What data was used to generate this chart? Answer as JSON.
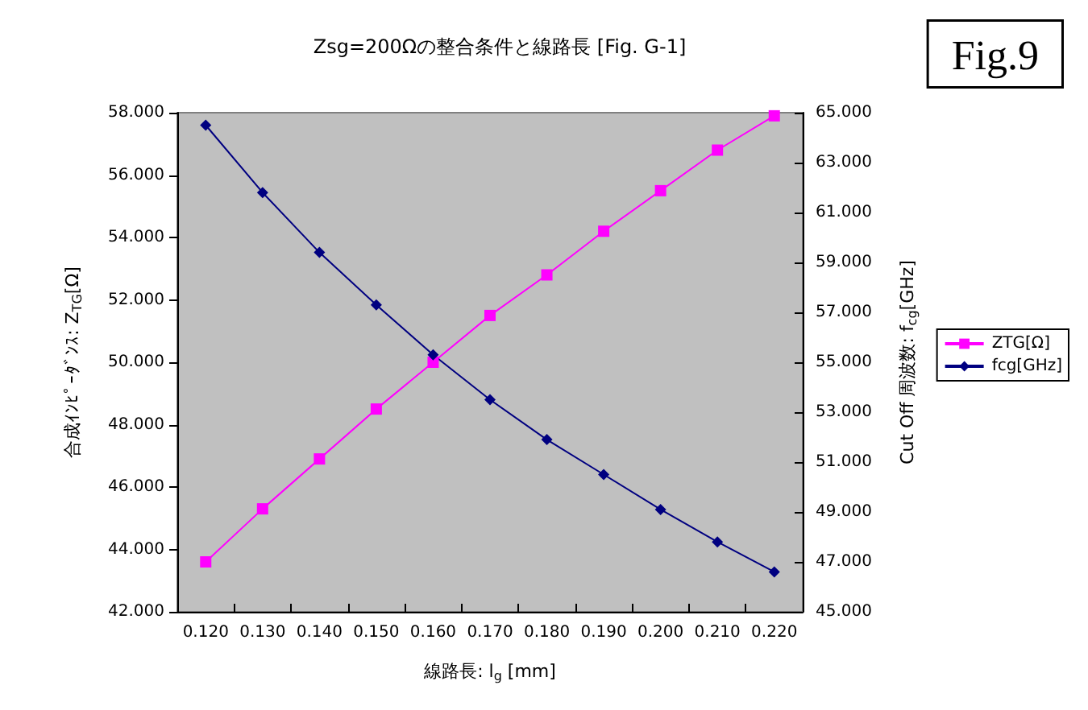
{
  "chart_data": {
    "type": "line",
    "title": "Zsg=200Ωの整合条件と線路長 [Fig. G-1]",
    "annotations": [
      "Fig.9"
    ],
    "xlabel": "線路長: l$_{g}$ [mm]",
    "ylabel": "合成ｲﾝﾋﾟｰﾀﾞﾝｽ: Z$_{TG}$[Ω]",
    "y2label": "Cut Off 周波数: f$_{cg}$[GHz]",
    "categories": [
      "0.120",
      "0.130",
      "0.140",
      "0.150",
      "0.160",
      "0.170",
      "0.180",
      "0.190",
      "0.200",
      "0.210",
      "0.220"
    ],
    "series": [
      {
        "name": "ZTG[Ω]",
        "color": "#ff00ff",
        "marker": "square",
        "values": [
          43.6,
          45.3,
          46.9,
          48.5,
          50.0,
          51.5,
          52.8,
          54.2,
          55.5,
          56.8,
          57.9
        ]
      },
      {
        "name": "fcg[GHz]",
        "color": "#000080",
        "marker": "diamond",
        "axis": "y2",
        "values": [
          64.5,
          61.8,
          59.4,
          57.3,
          55.3,
          53.5,
          51.9,
          50.5,
          49.1,
          47.8,
          46.6
        ]
      }
    ],
    "ylim": [
      42,
      58
    ],
    "yticks": [
      {
        "value": 42,
        "label": "42.000"
      },
      {
        "value": 44,
        "label": "44.000"
      },
      {
        "value": 46,
        "label": "46.000"
      },
      {
        "value": 48,
        "label": "48.000"
      },
      {
        "value": 50,
        "label": "50.000"
      },
      {
        "value": 52,
        "label": "52.000"
      },
      {
        "value": 54,
        "label": "54.000"
      },
      {
        "value": 56,
        "label": "56.000"
      },
      {
        "value": 58,
        "label": "58.000"
      }
    ],
    "y2lim": [
      45,
      65
    ],
    "y2ticks": [
      {
        "value": 45,
        "label": "45.000"
      },
      {
        "value": 47,
        "label": "47.000"
      },
      {
        "value": 49,
        "label": "49.000"
      },
      {
        "value": 51,
        "label": "51.000"
      },
      {
        "value": 53,
        "label": "53.000"
      },
      {
        "value": 55,
        "label": "55.000"
      },
      {
        "value": 57,
        "label": "57.000"
      },
      {
        "value": 59,
        "label": "59.000"
      },
      {
        "value": 61,
        "label": "61.000"
      },
      {
        "value": 63,
        "label": "63.000"
      },
      {
        "value": 65,
        "label": "65.000"
      }
    ],
    "grid": false,
    "legend": "right",
    "line_style": "solid"
  }
}
